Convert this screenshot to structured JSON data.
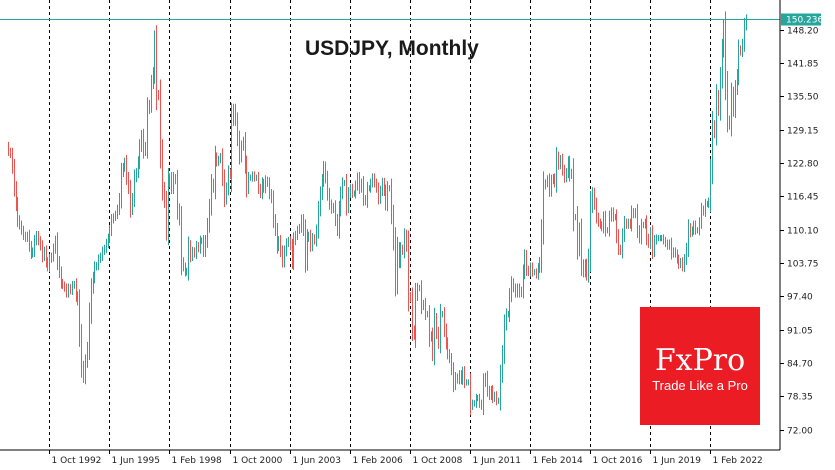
{
  "chart_data": {
    "type": "candlestick",
    "title": "USDJPY, Monthly",
    "y_ticks": [
      "148.20",
      "141.85",
      "135.50",
      "129.15",
      "122.80",
      "116.45",
      "110.10",
      "103.75",
      "97.40",
      "91.05",
      "84.70",
      "78.35",
      "72.00"
    ],
    "x_ticks": [
      "1 Oct 1992",
      "1 Jun 1995",
      "1 Feb 1998",
      "1 Oct 2000",
      "1 Jun 2003",
      "1 Feb 2006",
      "1 Oct 2008",
      "1 Jun 2011",
      "1 Feb 2014",
      "1 Oct 2016",
      "1 Jun 2019",
      "1 Feb 2022"
    ],
    "ylim": [
      68.5,
      153.5
    ],
    "last_price": 150.236,
    "last_price_label": "150.236",
    "grid": "vertical dashed",
    "x_start": "1990-12",
    "colors": {
      "up": "#26a69a",
      "down": "#ef5350",
      "last_line": "#26a69a",
      "axis": "#000000",
      "grid": "#000000"
    },
    "closes": [
      125.0,
      124.5,
      122.0,
      118.0,
      115.0,
      112.0,
      111.0,
      110.0,
      109.0,
      108.5,
      109.0,
      107.0,
      105.5,
      106.0,
      108.0,
      109.0,
      108.0,
      107.0,
      105.0,
      106.0,
      104.0,
      103.0,
      104.5,
      105.0,
      106.5,
      108.0,
      104.0,
      102.0,
      100.0,
      99.5,
      99.0,
      98.0,
      99.0,
      98.5,
      99.5,
      99.7,
      97.5,
      96.5,
      90.0,
      84.0,
      82.0,
      85.0,
      87.5,
      94.0,
      99.0,
      101.0,
      103.0,
      103.3,
      104.5,
      105.0,
      106.0,
      106.5,
      107.5,
      108.5,
      110.0,
      112.0,
      112.5,
      113.0,
      114.0,
      116.0,
      121.0,
      122.0,
      123.0,
      120.0,
      118.0,
      114.0,
      116.0,
      120.0,
      121.0,
      123.0,
      126.0,
      128.0,
      125.0,
      126.0,
      133.0,
      134.0,
      138.0,
      140.0,
      146.0,
      136.0,
      135.5,
      125.0,
      118.0,
      115.5,
      110.0,
      119.0,
      120.0,
      118.0,
      120.0,
      119.5,
      114.0,
      112.0,
      104.0,
      103.0,
      102.0,
      102.2,
      107.0,
      105.0,
      106.0,
      105.5,
      107.0,
      106.5,
      108.0,
      108.0,
      106.0,
      108.0,
      111.0,
      114.5,
      119.0,
      118.0,
      124.0,
      123.0,
      123.5,
      124.0,
      120.0,
      116.0,
      118.0,
      121.0,
      120.5,
      131.0,
      133.0,
      131.0,
      127.5,
      124.0,
      126.0,
      127.0,
      122.5,
      118.0,
      120.0,
      120.0,
      120.5,
      120.0,
      120.0,
      118.0,
      117.0,
      119.0,
      118.0,
      119.5,
      119.0,
      117.0,
      116.0,
      112.0,
      110.0,
      106.9,
      108.0,
      106.0,
      104.0,
      106.0,
      107.5,
      108.0,
      107.0,
      104.0,
      108.0,
      109.0,
      110.0,
      110.5,
      112.0,
      110.0,
      104.0,
      108.5,
      109.0,
      107.0,
      108.5,
      108.0,
      110.0,
      114.0,
      117.0,
      119.5,
      122.0,
      120.0,
      117.0,
      115.0,
      114.0,
      114.5,
      112.0,
      110.0,
      114.0,
      117.0,
      119.0,
      119.0,
      114.5,
      117.0,
      118.0,
      117.0,
      117.0,
      118.5,
      120.0,
      118.0,
      119.0,
      116.0,
      115.5,
      118.0,
      118.0,
      119.0,
      120.0,
      119.0,
      118.0,
      116.0,
      117.5,
      119.0,
      117.5,
      115.0,
      118.0,
      118.0,
      113.0,
      108.0,
      100.0,
      106.5,
      104.0,
      106.5,
      106.0,
      109.0,
      107.0,
      97.5,
      97.0,
      91.0,
      90.0,
      97.5,
      99.0,
      99.0,
      95.5,
      96.0,
      94.0,
      94.0,
      89.5,
      90.0,
      86.5,
      93.0,
      90.5,
      88.5,
      94.0,
      94.0,
      91.0,
      88.5,
      86.5,
      85.5,
      83.5,
      80.5,
      82.0,
      81.5,
      82.5,
      81.5,
      83.0,
      81.0,
      81.0,
      81.0,
      76.5,
      77.0,
      77.0,
      78.0,
      78.0,
      77.0,
      76.5,
      81.0,
      82.0,
      79.5,
      78.5,
      79.5,
      78.0,
      78.5,
      77.5,
      77.5,
      82.5,
      86.5,
      92.0,
      94.0,
      94.0,
      97.5,
      100.0,
      99.0,
      98.0,
      99.0,
      98.0,
      98.5,
      102.0,
      105.0,
      102.5,
      102.0,
      103.0,
      102.0,
      102.0,
      101.5,
      102.8,
      104.0,
      110.0,
      118.5,
      119.0,
      119.7,
      117.5,
      119.5,
      120.0,
      119.0,
      124.0,
      122.5,
      123.5,
      121.5,
      120.0,
      121.0,
      123.0,
      120.5,
      121.0,
      112.5,
      112.5,
      106.5,
      110.0,
      103.5,
      102.0,
      103.5,
      101.5,
      105.0,
      114.5,
      117.0,
      115.0,
      112.5,
      111.5,
      111.0,
      110.5,
      112.5,
      110.0,
      110.0,
      112.5,
      113.5,
      112.5,
      112.5,
      109.0,
      106.5,
      106.0,
      109.0,
      111.5,
      111.0,
      111.5,
      111.0,
      113.5,
      113.0,
      113.5,
      110.0,
      108.5,
      111.0,
      111.0,
      111.5,
      108.5,
      107.5,
      109.5,
      106.0,
      108.0,
      108.5,
      108.5,
      108.5,
      108.5,
      108.0,
      107.5,
      107.0,
      107.5,
      105.5,
      106.0,
      105.5,
      104.5,
      103.5,
      104.0,
      103.0,
      104.5,
      106.5,
      110.5,
      109.5,
      110.0,
      111.0,
      110.0,
      110.0,
      111.5,
      114.0,
      113.5,
      115.0,
      115.0,
      115.5,
      121.5,
      130.0,
      128.5,
      135.5,
      133.0,
      139.0,
      144.5,
      148.5,
      138.0,
      131.0,
      130.0,
      136.0,
      133.0,
      137.0,
      139.5,
      144.5,
      144.0,
      145.5,
      149.0,
      150.236
    ]
  },
  "branding": {
    "logo_text": "FxPro",
    "tagline": "Trade Like a Pro",
    "background_color": "#ec1c24"
  }
}
